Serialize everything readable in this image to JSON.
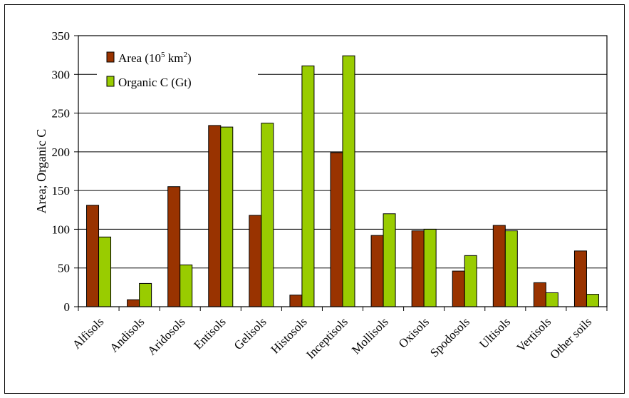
{
  "chart_data": {
    "type": "bar",
    "title": "",
    "xlabel": "",
    "ylabel": "Area; Organic C",
    "ylim": [
      0,
      350
    ],
    "yticks": [
      0,
      50,
      100,
      150,
      200,
      250,
      300,
      350
    ],
    "grid": true,
    "legend_position": "top-left",
    "categories": [
      "Alfisols",
      "Andisols",
      "Aridosols",
      "Entisols",
      "Gelisols",
      "Histosols",
      "Inceptisols",
      "Mollisols",
      "Oxisols",
      "Spodosols",
      "Ultisols",
      "Vertisols",
      "Other soils"
    ],
    "series": [
      {
        "name": "Area (10",
        "name_sup1": "5",
        "name_mid": " km",
        "name_sup2": "2",
        "name_end": ")",
        "color": "#993300",
        "values": [
          131,
          9,
          155,
          234,
          118,
          15,
          199,
          92,
          98,
          46,
          105,
          31,
          72
        ]
      },
      {
        "name": "Organic C (Gt)",
        "color": "#99CC00",
        "values": [
          90,
          30,
          54,
          232,
          237,
          311,
          324,
          120,
          100,
          66,
          98,
          18,
          16
        ]
      }
    ]
  }
}
